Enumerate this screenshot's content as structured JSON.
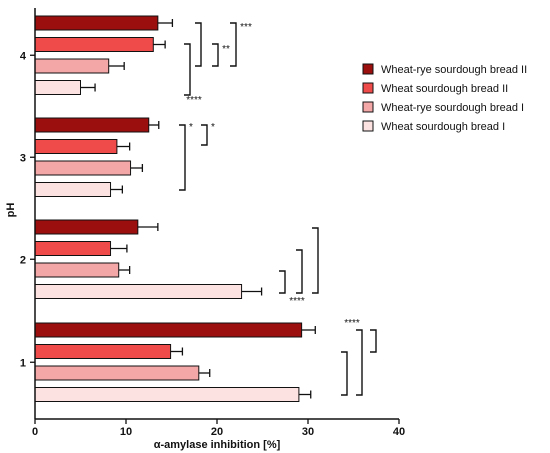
{
  "chart_data": {
    "type": "bar",
    "orientation": "horizontal",
    "xlabel": "α-amylase inhibition [%]",
    "ylabel": "pH",
    "xlim": [
      0,
      40
    ],
    "x_ticks": [
      "0",
      "10",
      "20",
      "30",
      "40"
    ],
    "categories": [
      "4",
      "3",
      "2",
      "1"
    ],
    "series": [
      {
        "name": "Wheat-rye sourdough bread II",
        "color": "#9b0f0f",
        "values": [
          13.5,
          12.5,
          11.3,
          29.3
        ],
        "errors": [
          1.6,
          1.1,
          2.2,
          1.5
        ]
      },
      {
        "name": "Wheat sourdough bread II",
        "color": "#f04b4b",
        "values": [
          13.0,
          9.0,
          8.3,
          14.9
        ],
        "errors": [
          1.3,
          1.4,
          1.8,
          1.3
        ]
      },
      {
        "name": "Wheat-rye sourdough bread I",
        "color": "#f3a7a7",
        "values": [
          8.1,
          10.5,
          9.2,
          18.0
        ],
        "errors": [
          1.7,
          1.3,
          1.2,
          1.2
        ]
      },
      {
        "name": "Wheat sourdough bread I",
        "color": "#fde2e2",
        "values": [
          5.0,
          8.3,
          22.7,
          29.0
        ],
        "errors": [
          1.6,
          1.3,
          2.2,
          1.3
        ]
      }
    ],
    "legend": {
      "position": "right",
      "order": [
        0,
        1,
        2,
        3
      ]
    },
    "significance": [
      {
        "group": "4",
        "label": "***"
      },
      {
        "group": "4",
        "label": "**"
      },
      {
        "group": "4",
        "label": "****"
      },
      {
        "group": "3",
        "label": "*"
      },
      {
        "group": "3",
        "label": "*"
      },
      {
        "group": "2",
        "label": "****"
      },
      {
        "group": "1",
        "label": "****"
      }
    ]
  }
}
